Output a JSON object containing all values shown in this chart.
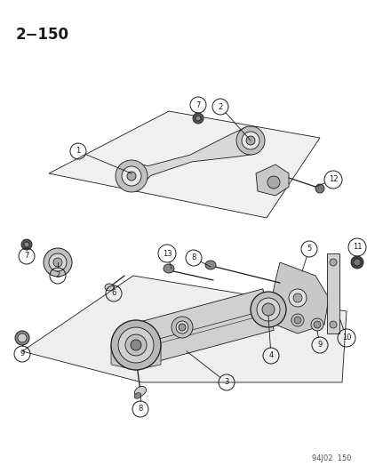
{
  "title": "2−150",
  "footer": "94J02  150",
  "bg_color": "#ffffff",
  "fg_color": "#1a1a1a",
  "fig_width": 4.14,
  "fig_height": 5.33,
  "dpi": 100
}
